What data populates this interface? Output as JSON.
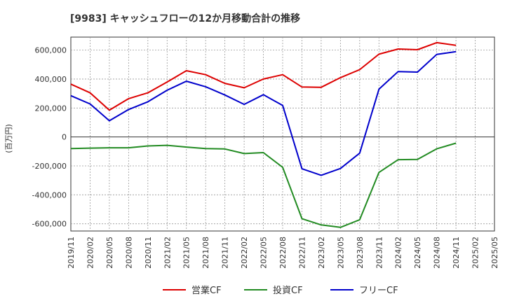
{
  "chart_data": {
    "type": "line",
    "title": "[9983]  キャッシュフローの12か月移動合計の推移",
    "ylabel": "(百万円)",
    "xlabel": "",
    "ylim": [
      -650000,
      690000
    ],
    "yticks": [
      600000,
      400000,
      200000,
      0,
      -200000,
      -400000,
      -600000
    ],
    "ytick_labels": [
      "600,000",
      "400,000",
      "200,000",
      "0",
      "-200,000",
      "-400,000",
      "-600,000"
    ],
    "categories": [
      "2019/11",
      "2020/02",
      "2020/05",
      "2020/08",
      "2020/11",
      "2021/02",
      "2021/05",
      "2021/08",
      "2021/11",
      "2022/02",
      "2022/05",
      "2022/08",
      "2022/11",
      "2023/02",
      "2023/05",
      "2023/08",
      "2023/11",
      "2024/02",
      "2024/05",
      "2024/08",
      "2024/11",
      "2025/02",
      "2025/05"
    ],
    "grid": true,
    "legend_position": "bottom",
    "series": [
      {
        "name": "営業CF",
        "color": "#dd0000",
        "values": [
          365000,
          305000,
          185000,
          265000,
          305000,
          380000,
          458000,
          430000,
          370000,
          340000,
          400000,
          430000,
          345000,
          343000,
          410000,
          465000,
          572000,
          608000,
          603000,
          652000,
          633000,
          null,
          null
        ]
      },
      {
        "name": "投資CF",
        "color": "#228B22",
        "values": [
          -80000,
          -77000,
          -75000,
          -75000,
          -62000,
          -58000,
          -70000,
          -80000,
          -83000,
          -115000,
          -108000,
          -210000,
          -565000,
          -608000,
          -625000,
          -572000,
          -245000,
          -157000,
          -155000,
          -82000,
          -43000,
          null,
          null
        ]
      },
      {
        "name": "フリーCF",
        "color": "#0000cc",
        "values": [
          285000,
          228000,
          112000,
          190000,
          243000,
          323000,
          385000,
          347000,
          290000,
          225000,
          292000,
          218000,
          -220000,
          -265000,
          -218000,
          -112000,
          330000,
          452000,
          448000,
          570000,
          590000,
          null,
          null
        ]
      }
    ]
  }
}
